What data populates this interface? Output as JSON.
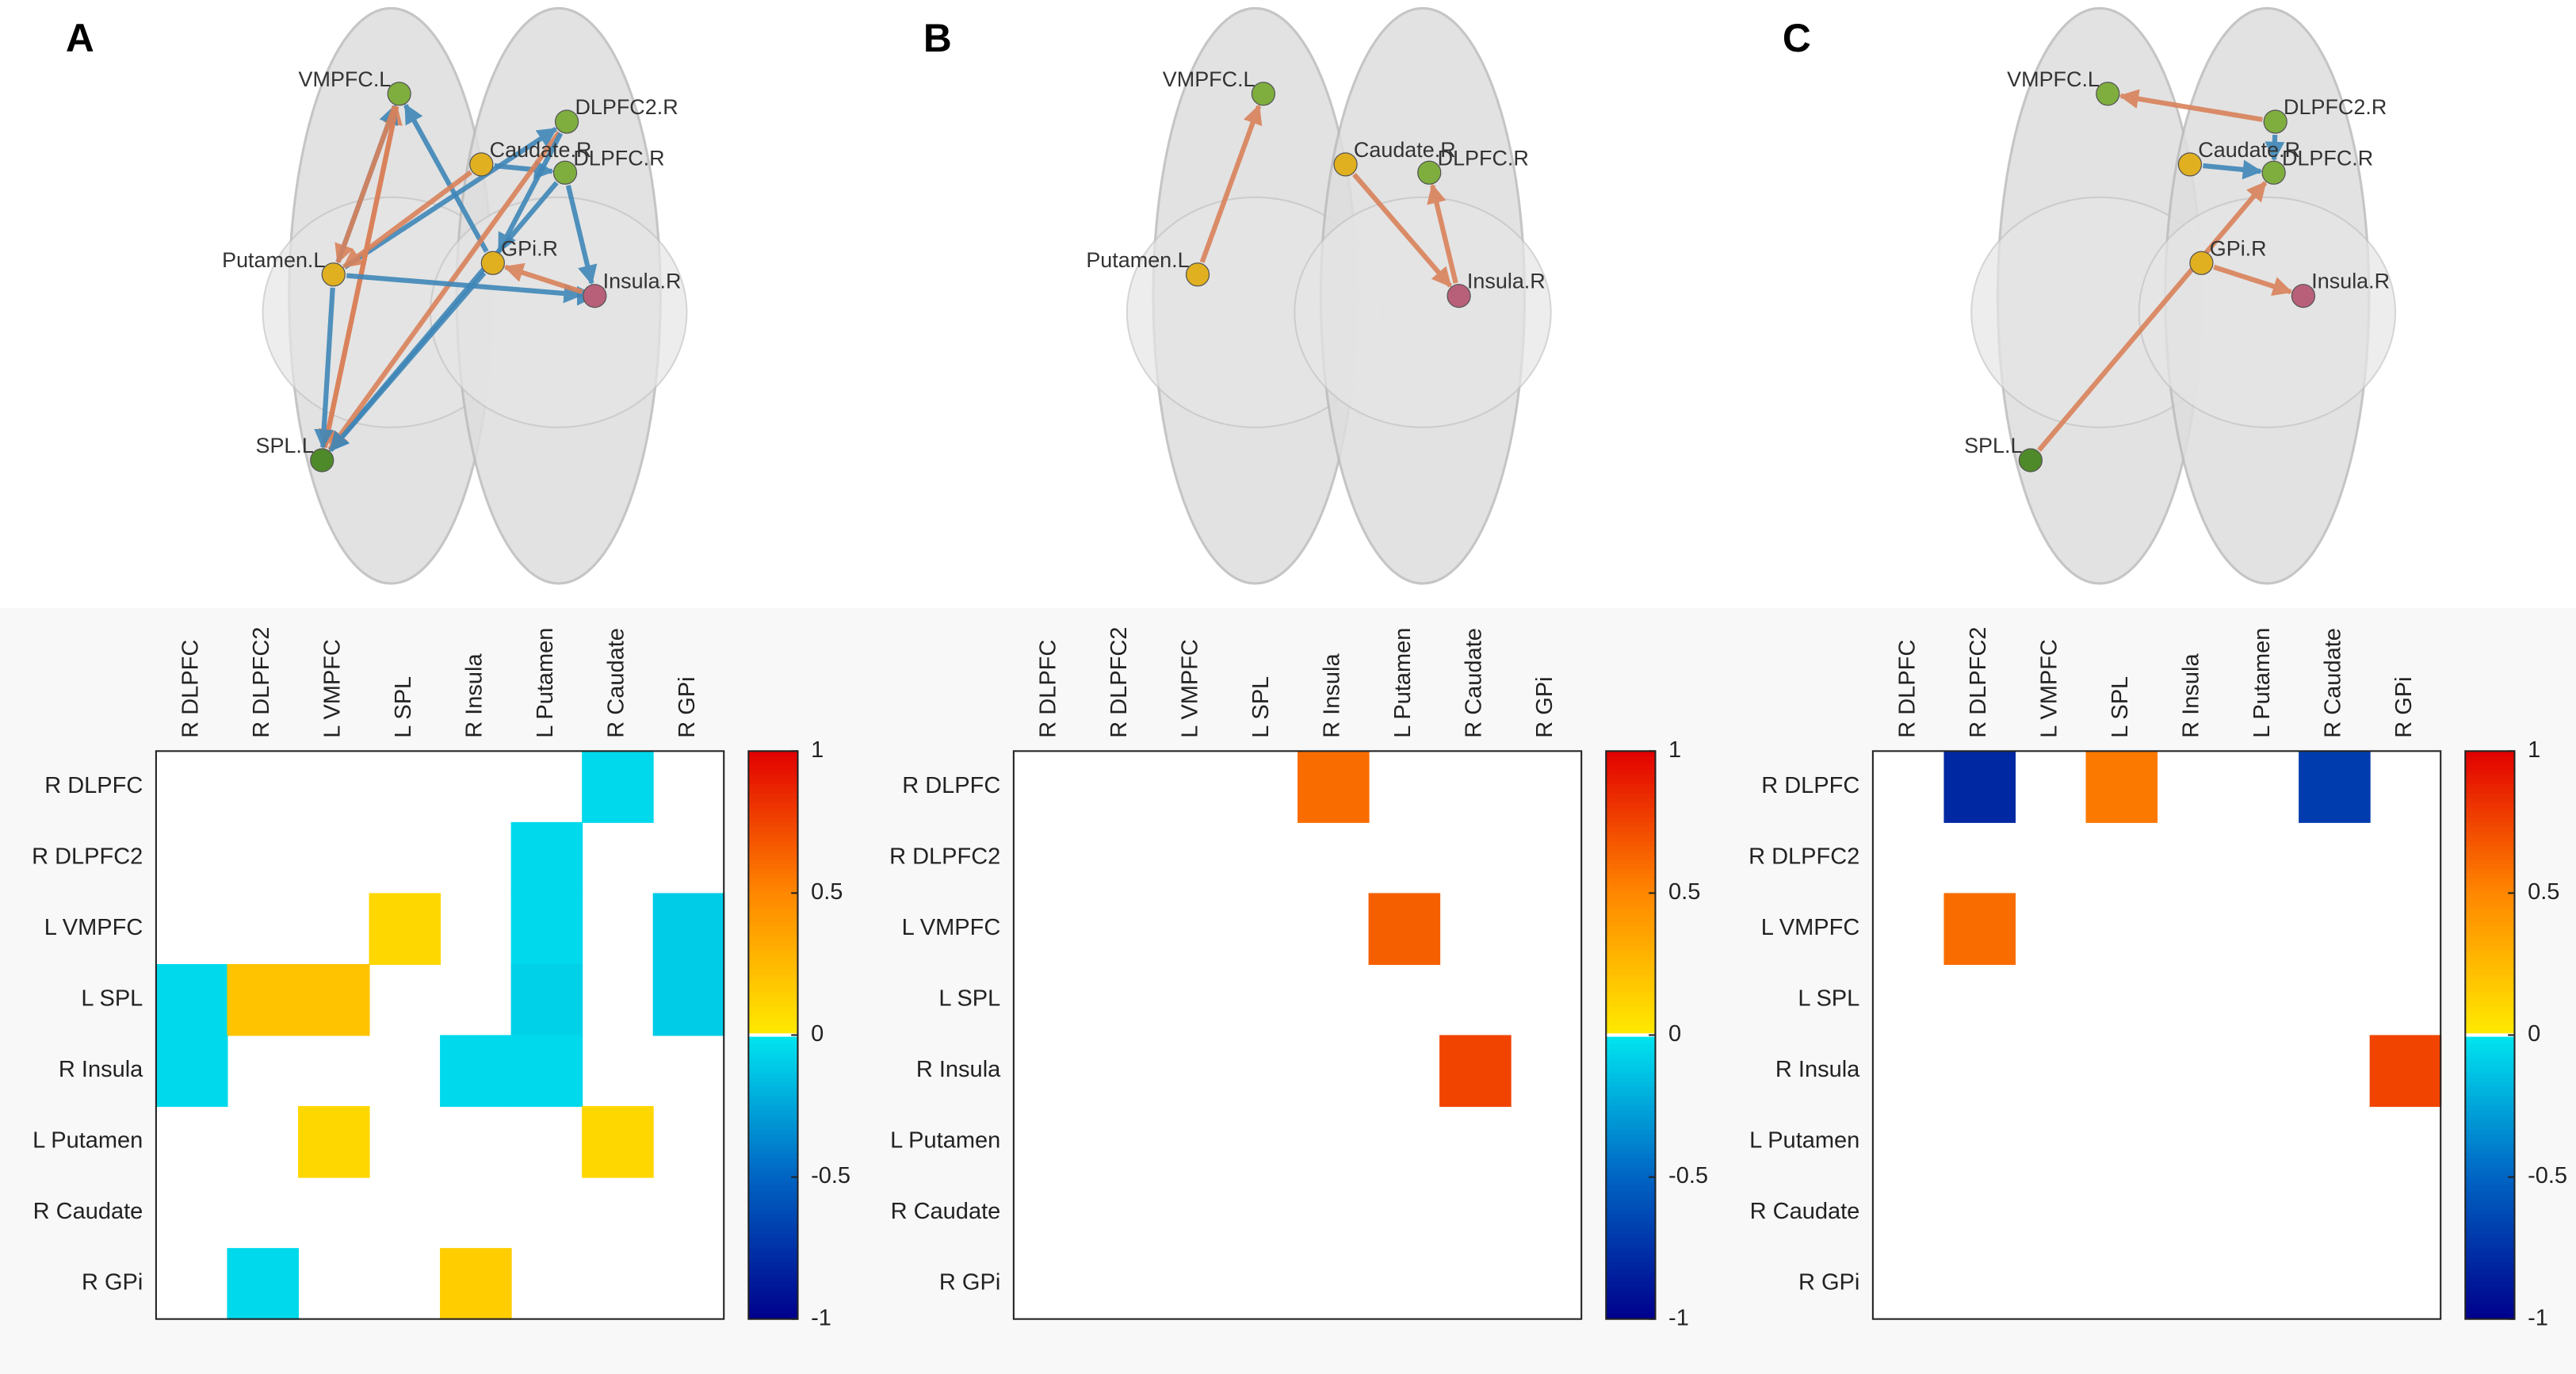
{
  "chart_data": [
    {
      "type": "heatmap",
      "panel": "A",
      "rows": [
        "R DLPFC",
        "R DLPFC2",
        "L VMPFC",
        "L SPL",
        "R Insula",
        "L Putamen",
        "R Caudate",
        "R GPi"
      ],
      "columns": [
        "R DLPFC",
        "R DLPFC2",
        "L VMPFC",
        "L SPL",
        "R Insula",
        "L Putamen",
        "R Caudate",
        "R GPi"
      ],
      "values": [
        [
          null,
          null,
          null,
          null,
          null,
          null,
          -0.05,
          null
        ],
        [
          null,
          null,
          null,
          null,
          null,
          -0.05,
          null,
          null
        ],
        [
          null,
          null,
          null,
          0.1,
          null,
          -0.05,
          null,
          -0.1
        ],
        [
          -0.05,
          0.2,
          0.2,
          null,
          null,
          -0.08,
          null,
          -0.1
        ],
        [
          -0.05,
          null,
          null,
          null,
          -0.05,
          -0.05,
          null,
          null
        ],
        [
          null,
          null,
          0.1,
          null,
          null,
          null,
          0.1,
          null
        ],
        [
          null,
          null,
          null,
          null,
          null,
          null,
          null,
          null
        ],
        [
          null,
          -0.05,
          null,
          null,
          0.15,
          null,
          null,
          null
        ]
      ],
      "clim": [
        -1,
        1
      ],
      "cticks": [
        1,
        0.5,
        0,
        -0.5,
        -1
      ],
      "nodes": [
        "DLPFC.R",
        "DLPFC2.R",
        "VMPFC.L",
        "SPL.L",
        "Insula.R",
        "Putamen.L",
        "Caudate.R",
        "GPi.R"
      ],
      "node_colors": [
        "#7fae3e",
        "#7fae3e",
        "#7fae3e",
        "#4f8a2a",
        "#b8607a",
        "#e0b020",
        "#e0b020",
        "#e0b020"
      ]
    },
    {
      "type": "heatmap",
      "panel": "B",
      "rows": [
        "R DLPFC",
        "R DLPFC2",
        "L VMPFC",
        "L SPL",
        "R Insula",
        "L Putamen",
        "R Caudate",
        "R GPi"
      ],
      "columns": [
        "R DLPFC",
        "R DLPFC2",
        "L VMPFC",
        "L SPL",
        "R Insula",
        "L Putamen",
        "R Caudate",
        "R GPi"
      ],
      "values": [
        [
          null,
          null,
          null,
          null,
          0.6,
          null,
          null,
          null
        ],
        [
          null,
          null,
          null,
          null,
          null,
          null,
          null,
          null
        ],
        [
          null,
          null,
          null,
          null,
          null,
          0.65,
          null,
          null
        ],
        [
          null,
          null,
          null,
          null,
          null,
          null,
          null,
          null
        ],
        [
          null,
          null,
          null,
          null,
          null,
          null,
          0.75,
          null
        ],
        [
          null,
          null,
          null,
          null,
          null,
          null,
          null,
          null
        ],
        [
          null,
          null,
          null,
          null,
          null,
          null,
          null,
          null
        ],
        [
          null,
          null,
          null,
          null,
          null,
          null,
          null,
          null
        ]
      ],
      "clim": [
        -1,
        1
      ],
      "cticks": [
        1,
        0.5,
        0,
        -0.5,
        -1
      ],
      "nodes": [
        "DLPFC.R",
        null,
        "VMPFC.L",
        null,
        "Insula.R",
        "Putamen.L",
        "Caudate.R",
        null
      ],
      "node_colors": [
        "#7fae3e",
        "#7fae3e",
        "#7fae3e",
        "#4f8a2a",
        "#b8607a",
        "#e0b020",
        "#e0b020",
        "#e0b020"
      ]
    },
    {
      "type": "heatmap",
      "panel": "C",
      "rows": [
        "R DLPFC",
        "R DLPFC2",
        "L VMPFC",
        "L SPL",
        "R Insula",
        "L Putamen",
        "R Caudate",
        "R GPi"
      ],
      "columns": [
        "R DLPFC",
        "R DLPFC2",
        "L VMPFC",
        "L SPL",
        "R Insula",
        "L Putamen",
        "R Caudate",
        "R GPi"
      ],
      "values": [
        [
          null,
          -0.8,
          null,
          0.55,
          null,
          null,
          -0.7,
          null
        ],
        [
          null,
          null,
          null,
          null,
          null,
          null,
          null,
          null
        ],
        [
          null,
          0.6,
          null,
          null,
          null,
          null,
          null,
          null
        ],
        [
          null,
          null,
          null,
          null,
          null,
          null,
          null,
          null
        ],
        [
          null,
          null,
          null,
          null,
          null,
          null,
          null,
          0.75
        ],
        [
          null,
          null,
          null,
          null,
          null,
          null,
          null,
          null
        ],
        [
          null,
          null,
          null,
          null,
          null,
          null,
          null,
          null
        ],
        [
          null,
          null,
          null,
          null,
          null,
          null,
          null,
          null
        ]
      ],
      "clim": [
        -1,
        1
      ],
      "cticks": [
        1,
        0.5,
        0,
        -0.5,
        -1
      ],
      "nodes": [
        "DLPFC.R",
        "DLPFC2.R",
        "VMPFC.L",
        "SPL.L",
        "Insula.R",
        null,
        "Caudate.R",
        "GPi.R"
      ],
      "node_colors": [
        "#7fae3e",
        "#7fae3e",
        "#7fae3e",
        "#4f8a2a",
        "#b8607a",
        "#e0b020",
        "#e0b020",
        "#e0b020"
      ]
    }
  ]
}
